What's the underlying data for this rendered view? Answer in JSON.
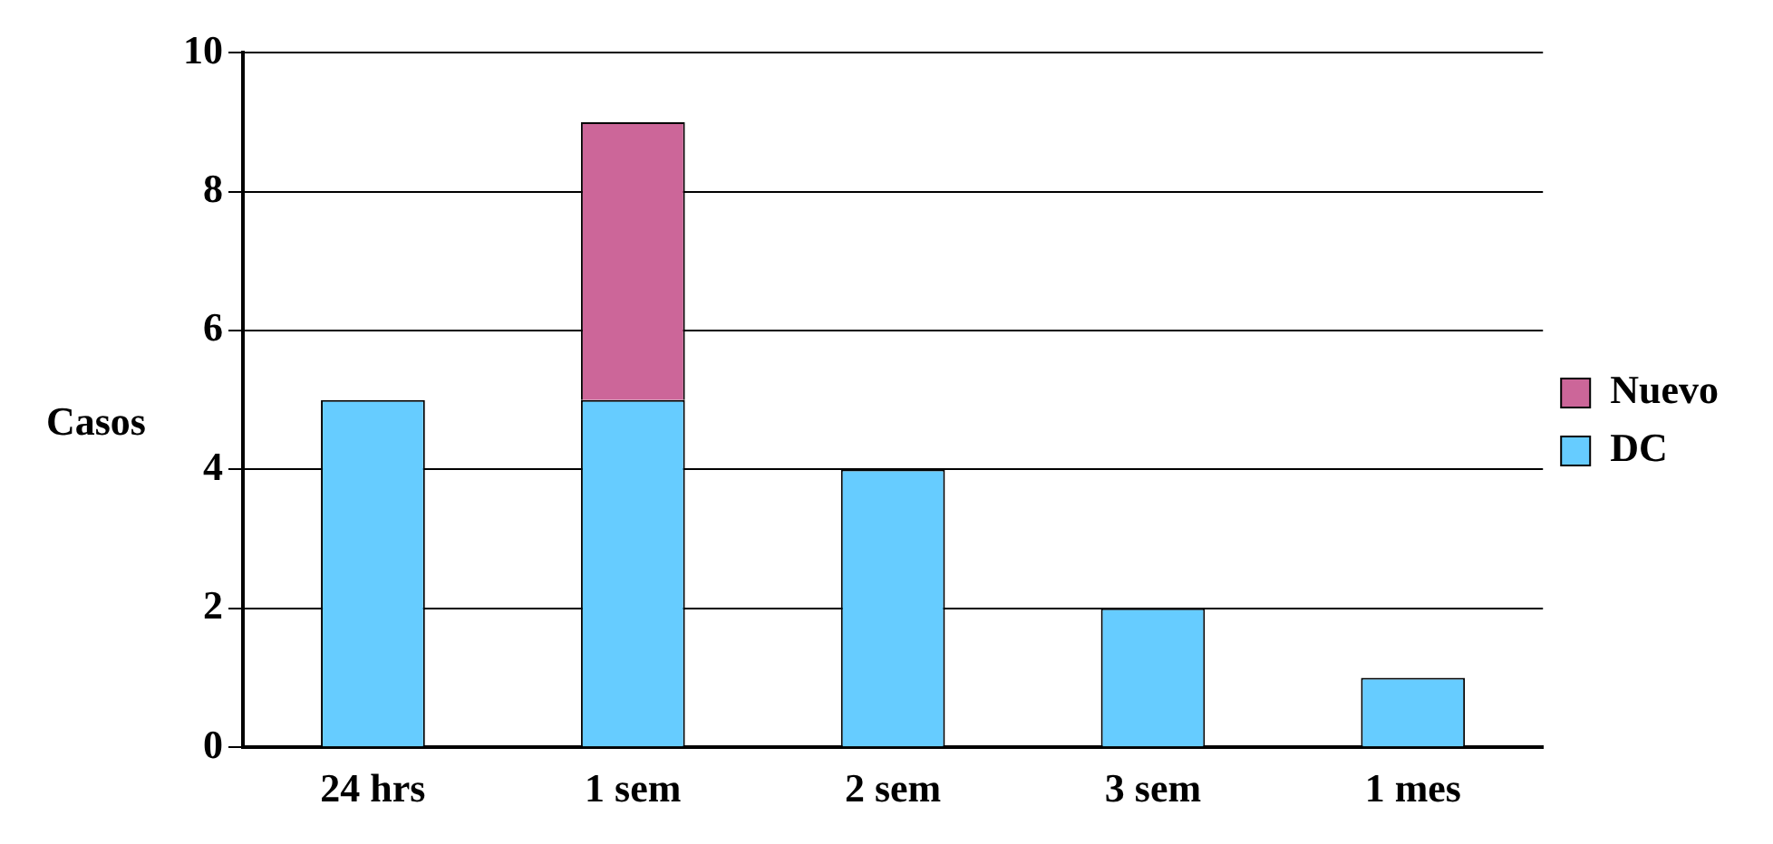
{
  "chart_data": {
    "type": "bar",
    "ylabel": "Casos",
    "categories": [
      "24 hrs",
      "1 sem",
      "2 sem",
      "3 sem",
      "1 mes"
    ],
    "stacked": true,
    "series": [
      {
        "name": "DC",
        "color": "#66ccff",
        "values": [
          5,
          5,
          4,
          2,
          1
        ]
      },
      {
        "name": "Nuevo",
        "color": "#cc6699",
        "values": [
          0,
          4,
          0,
          0,
          0
        ]
      }
    ],
    "ylim": [
      0,
      10
    ],
    "yticks": [
      0,
      2,
      4,
      6,
      8,
      10
    ],
    "grid": "y",
    "legend": "right"
  }
}
